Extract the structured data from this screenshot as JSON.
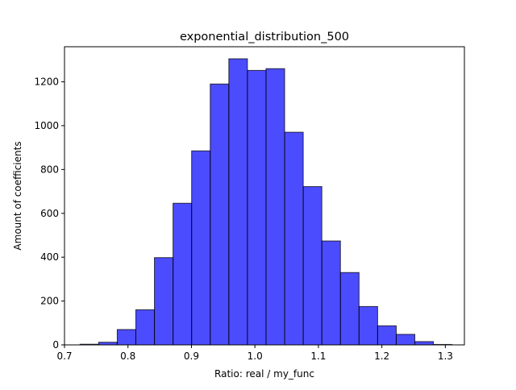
{
  "chart_data": {
    "type": "bar",
    "title": "exponential_distribution_500",
    "xlabel": "Ratio: real / my_func",
    "ylabel": "Amount of coefficients",
    "xlim": [
      0.7,
      1.33
    ],
    "ylim": [
      0,
      1360
    ],
    "x_ticks": [
      0.7,
      0.8,
      0.9,
      1.0,
      1.1,
      1.2,
      1.3
    ],
    "x_tick_labels": [
      "0.7",
      "0.8",
      "0.9",
      "1.0",
      "1.1",
      "1.2",
      "1.3"
    ],
    "y_ticks": [
      0,
      200,
      400,
      600,
      800,
      1000,
      1200
    ],
    "y_tick_labels": [
      "0",
      "200",
      "400",
      "600",
      "800",
      "1000",
      "1200"
    ],
    "bin_edges": [
      0.7245,
      0.7538,
      0.7831,
      0.8124,
      0.8417,
      0.871,
      0.9003,
      0.9296,
      0.9589,
      0.9882,
      1.0175,
      1.0468,
      1.0761,
      1.1054,
      1.1347,
      1.164,
      1.1933,
      1.2226,
      1.2519,
      1.2812,
      1.3105
    ],
    "counts": [
      3,
      12,
      70,
      160,
      398,
      646,
      885,
      1190,
      1305,
      1252,
      1260,
      970,
      722,
      474,
      330,
      175,
      87,
      48,
      15,
      2
    ],
    "bar_color": "#0000ff",
    "bar_opacity": 0.7,
    "edge_color": "#000000",
    "grid": false,
    "legend": "none"
  }
}
